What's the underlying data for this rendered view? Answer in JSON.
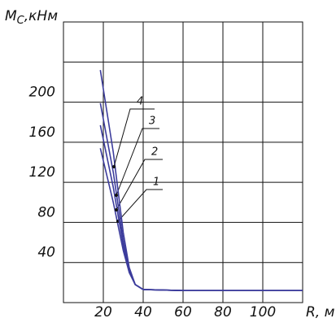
{
  "chart_data": {
    "type": "line",
    "ylabel": {
      "main": "M",
      "sub": "C",
      "rest": ",кНм"
    },
    "xlabel": "R, м",
    "x": [
      18.5,
      25,
      30,
      33,
      36,
      40,
      60,
      120
    ],
    "series": [
      {
        "name": "1",
        "color": "#3c3c9c",
        "values": [
          154,
          100,
          52,
          30,
          18,
          13,
          12,
          12
        ]
      },
      {
        "name": "2",
        "color": "#3c3c9c",
        "values": [
          177,
          115,
          57,
          31,
          18,
          13,
          12,
          12
        ]
      },
      {
        "name": "3",
        "color": "#3c3c9c",
        "values": [
          199,
          130,
          62,
          33,
          18,
          13,
          12,
          12
        ]
      },
      {
        "name": "4",
        "color": "#3c3c9c",
        "values": [
          232,
          150,
          70,
          35,
          18,
          13,
          12,
          12
        ]
      }
    ],
    "xlim": [
      0,
      120
    ],
    "xticks": [
      20,
      40,
      60,
      80,
      100
    ],
    "ylim": [
      0,
      280
    ],
    "yticks": [
      40,
      80,
      120,
      160,
      200
    ],
    "grid": true
  }
}
